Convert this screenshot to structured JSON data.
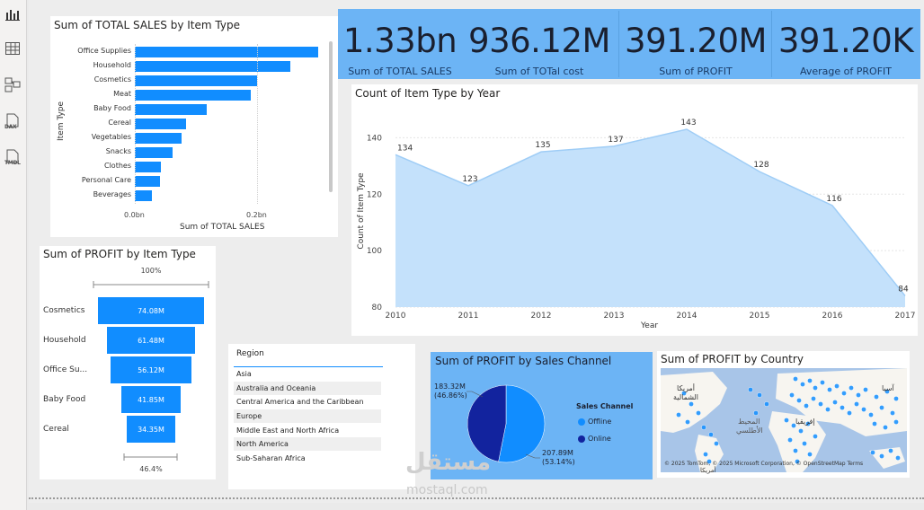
{
  "sidebar": {
    "items": [
      {
        "icon": "report-view-icon"
      },
      {
        "icon": "table-view-icon"
      },
      {
        "icon": "model-view-icon"
      },
      {
        "icon": "dax-query-icon",
        "label": "DAX"
      },
      {
        "icon": "tmdl-view-icon",
        "label": "TMDL"
      }
    ]
  },
  "kpis": [
    {
      "value": "1.33bn",
      "label": "Sum of TOTAL SALES"
    },
    {
      "value": "936.12M",
      "label": "Sum of TOTal cost"
    },
    {
      "value": "391.20M",
      "label": "Sum of PROFIT"
    },
    {
      "value": "391.20K",
      "label": "Average of PROFIT"
    }
  ],
  "sales_by_type": {
    "title": "Sum of TOTAL SALES by Item Type",
    "ylabel": "Item Type",
    "xlabel": "Sum of TOTAL SALES",
    "ticks": [
      "0.0bn",
      "0.2bn"
    ],
    "chart_data": {
      "type": "bar",
      "orientation": "horizontal",
      "categories": [
        "Office Supplies",
        "Household",
        "Cosmetics",
        "Meat",
        "Baby Food",
        "Cereal",
        "Vegetables",
        "Snacks",
        "Clothes",
        "Personal Care",
        "Beverages"
      ],
      "values": [
        0.3,
        0.255,
        0.2,
        0.19,
        0.117,
        0.084,
        0.076,
        0.062,
        0.043,
        0.041,
        0.028
      ],
      "unit": "bn",
      "xlim": [
        0,
        0.32
      ],
      "color": "#118dff"
    }
  },
  "count_by_year": {
    "title": "Count of Item Type by Year",
    "ylabel": "Count of Item Type",
    "xlabel": "Year",
    "yticks": [
      "140",
      "120",
      "100",
      "80"
    ],
    "chart_data": {
      "type": "area",
      "x": [
        "2010",
        "2011",
        "2012",
        "2013",
        "2014",
        "2015",
        "2016",
        "2017"
      ],
      "y": [
        134,
        123,
        135,
        137,
        143,
        128,
        116,
        84
      ],
      "labels": [
        "134",
        "123",
        "135",
        "137",
        "143",
        "128",
        "116",
        "84"
      ],
      "ylim": [
        80,
        145
      ],
      "color": "#118dff"
    }
  },
  "profit_funnel": {
    "title": "Sum of PROFIT by Item Type",
    "top_pct": "100%",
    "bottom_pct": "46.4%",
    "chart_data": {
      "type": "bar",
      "orientation": "funnel",
      "categories": [
        "Cosmetics",
        "Household",
        "Office Su...",
        "Baby Food",
        "Cereal"
      ],
      "values": [
        74.08,
        61.48,
        56.12,
        41.85,
        34.35
      ],
      "labels": [
        "74.08M",
        "61.48M",
        "56.12M",
        "41.85M",
        "34.35M"
      ],
      "unit": "M"
    }
  },
  "region_slicer": {
    "header": "Region",
    "items": [
      "Asia",
      "Australia and Oceania",
      "Central America and the Caribbean",
      "Europe",
      "Middle East and North Africa",
      "North America",
      "Sub-Saharan Africa"
    ]
  },
  "channel_pie": {
    "title": "Sum of PROFIT by Sales Channel",
    "legend_title": "Sales Channel",
    "label_offline": "183.32M",
    "label_offline_pct": "(46.86%)",
    "label_online": "207.89M",
    "label_online_pct": "(53.14%)",
    "chart_data": {
      "type": "pie",
      "categories": [
        "Offline",
        "Online"
      ],
      "values": [
        183.32,
        207.89
      ],
      "colors": [
        "#118dff",
        "#12239e"
      ]
    }
  },
  "country_map": {
    "title": "Sum of PROFIT by Country",
    "label_asia": "آسيا",
    "label_north_america_1": "أمريكا",
    "label_north_america_2": "الشمالية",
    "label_atlantic_1": "المحيط",
    "label_atlantic_2": "الأطلسي",
    "label_south_america": "أمريكا",
    "label_africa": "إفريقيا",
    "attribution": "© 2025 TomTom, © 2025 Microsoft Corporation, © OpenStreetMap Terms",
    "land_color": "#f7f5f0",
    "water_color": "#a8c5e8",
    "bubble_color": "#118dff"
  },
  "watermark": {
    "text": "mostaql.com",
    "brand": "مستقل"
  }
}
